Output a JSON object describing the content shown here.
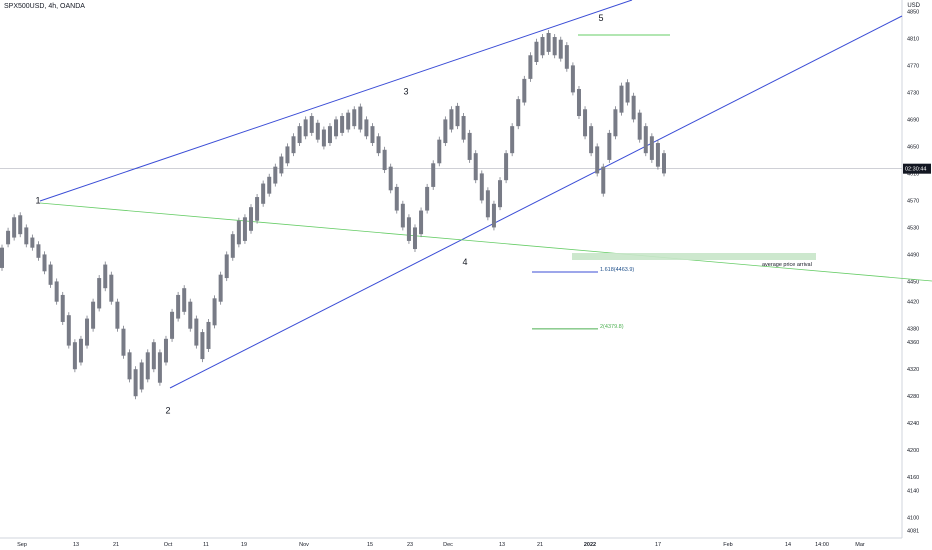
{
  "header": {
    "symbol": "SPX500USD, 4h, OANDA"
  },
  "currency": "USD",
  "chart_data": {
    "type": "candlestick",
    "x_ticks": [
      "Sep",
      "13",
      "21",
      "Oct",
      "11",
      "19",
      "Nov",
      "15",
      "23",
      "Dec",
      "13",
      "21",
      "2022",
      "17",
      "Feb",
      "14",
      "14:00",
      "Mar"
    ],
    "y_ticks": [
      4850,
      4810,
      4770,
      4730,
      4690,
      4650,
      4610,
      4570,
      4530,
      4490,
      4450,
      4420,
      4380,
      4360,
      4320,
      4280,
      4240,
      4200,
      4160,
      4140,
      4100,
      4081
    ],
    "ylim": [
      4070,
      4855
    ],
    "current_price": {
      "label": "02:30:44",
      "value": 4617
    },
    "wave_labels": [
      {
        "label": "1",
        "value": 4548
      },
      {
        "label": "2",
        "value": 4278
      },
      {
        "label": "3",
        "value": 4709
      },
      {
        "label": "4",
        "value": 4498
      },
      {
        "label": "5",
        "value": 4818
      }
    ],
    "fib_levels": [
      {
        "label": "1.618(4463.9)",
        "value": 4463.9,
        "color": "#3b4dd6"
      },
      {
        "label": "2(4379.8)",
        "value": 4379.8,
        "color": "#4caf50"
      }
    ],
    "annotation": "average price arrival",
    "series": [
      {
        "pts": [
          [
            4470,
            4500
          ],
          [
            4505,
            4525
          ],
          [
            4515,
            4545
          ],
          [
            4520,
            4548
          ],
          [
            4505,
            4530
          ],
          [
            4500,
            4515
          ],
          [
            4485,
            4505
          ],
          [
            4465,
            4490
          ],
          [
            4445,
            4475
          ],
          [
            4420,
            4450
          ],
          [
            4390,
            4430
          ],
          [
            4355,
            4400
          ],
          [
            4320,
            4360
          ],
          [
            4330,
            4365
          ],
          [
            4355,
            4395
          ],
          [
            4380,
            4420
          ],
          [
            4410,
            4455
          ],
          [
            4440,
            4475
          ],
          [
            4420,
            4460
          ],
          [
            4380,
            4420
          ],
          [
            4340,
            4380
          ],
          [
            4305,
            4345
          ],
          [
            4280,
            4320
          ],
          [
            4290,
            4330
          ],
          [
            4305,
            4345
          ],
          [
            4320,
            4360
          ],
          [
            4300,
            4345
          ],
          [
            4330,
            4365
          ],
          [
            4365,
            4405
          ],
          [
            4395,
            4430
          ],
          [
            4405,
            4440
          ],
          [
            4380,
            4420
          ],
          [
            4355,
            4395
          ],
          [
            4335,
            4375
          ],
          [
            4350,
            4390
          ],
          [
            4385,
            4425
          ],
          [
            4420,
            4460
          ],
          [
            4455,
            4490
          ],
          [
            4485,
            4520
          ],
          [
            4505,
            4540
          ],
          [
            4510,
            4545
          ],
          [
            4525,
            4560
          ],
          [
            4540,
            4575
          ],
          [
            4565,
            4595
          ],
          [
            4580,
            4605
          ],
          [
            4595,
            4620
          ],
          [
            4610,
            4635
          ],
          [
            4625,
            4650
          ],
          [
            4640,
            4665
          ],
          [
            4655,
            4680
          ],
          [
            4665,
            4690
          ],
          [
            4670,
            4695
          ],
          [
            4660,
            4685
          ],
          [
            4650,
            4675
          ],
          [
            4655,
            4680
          ],
          [
            4665,
            4690
          ],
          [
            4670,
            4695
          ],
          [
            4675,
            4700
          ],
          [
            4680,
            4705
          ],
          [
            4675,
            4709
          ],
          [
            4665,
            4690
          ],
          [
            4655,
            4680
          ],
          [
            4640,
            4665
          ],
          [
            4615,
            4645
          ],
          [
            4585,
            4620
          ],
          [
            4555,
            4590
          ],
          [
            4530,
            4565
          ],
          [
            4510,
            4545
          ],
          [
            4498,
            4530
          ],
          [
            4520,
            4555
          ],
          [
            4555,
            4590
          ],
          [
            4590,
            4625
          ],
          [
            4625,
            4660
          ],
          [
            4655,
            4690
          ],
          [
            4675,
            4705
          ],
          [
            4680,
            4710
          ],
          [
            4660,
            4695
          ],
          [
            4630,
            4670
          ],
          [
            4600,
            4640
          ],
          [
            4570,
            4610
          ],
          [
            4545,
            4585
          ],
          [
            4530,
            4565
          ],
          [
            4560,
            4600
          ],
          [
            4600,
            4640
          ],
          [
            4640,
            4680
          ],
          [
            4680,
            4720
          ],
          [
            4715,
            4750
          ],
          [
            4750,
            4785
          ],
          [
            4775,
            4805
          ],
          [
            4785,
            4812
          ],
          [
            4790,
            4818
          ],
          [
            4785,
            4812
          ],
          [
            4780,
            4808
          ],
          [
            4765,
            4800
          ],
          [
            4730,
            4770
          ],
          [
            4695,
            4735
          ],
          [
            4665,
            4705
          ],
          [
            4640,
            4680
          ],
          [
            4610,
            4650
          ],
          [
            4580,
            4620
          ],
          [
            4630,
            4670
          ],
          [
            4665,
            4705
          ],
          [
            4700,
            4740
          ],
          [
            4715,
            4745
          ],
          [
            4690,
            4725
          ],
          [
            4660,
            4700
          ],
          [
            4640,
            4680
          ],
          [
            4630,
            4665
          ],
          [
            4620,
            4655
          ],
          [
            4610,
            4640
          ]
        ]
      }
    ]
  }
}
